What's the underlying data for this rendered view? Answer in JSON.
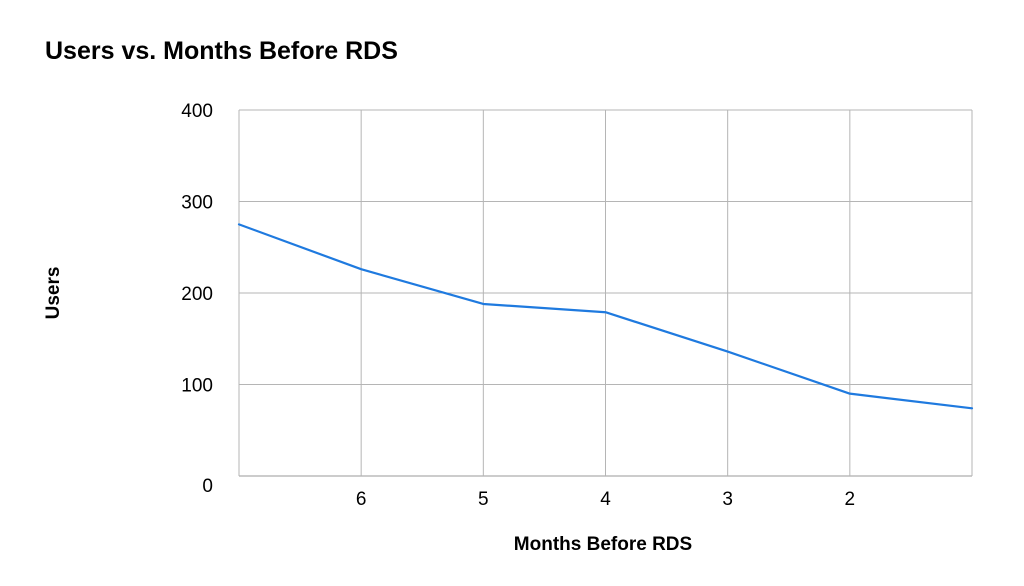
{
  "chart_data": {
    "type": "line",
    "title": "Users vs. Months Before RDS",
    "xlabel": "Months Before RDS",
    "ylabel": "Users",
    "x": [
      7,
      6,
      5,
      4,
      3,
      2,
      1
    ],
    "x_tick_labels": [
      "6",
      "5",
      "4",
      "3",
      "2"
    ],
    "x_tick_values": [
      6,
      5,
      4,
      3,
      2
    ],
    "xlim": [
      7,
      1
    ],
    "y_tick_labels": [
      "0",
      "100",
      "200",
      "300",
      "400"
    ],
    "y_tick_values": [
      0,
      100,
      200,
      300,
      400
    ],
    "ylim": [
      0,
      400
    ],
    "series": [
      {
        "values": [
          275,
          226,
          188,
          179,
          136,
          90,
          74
        ]
      }
    ],
    "line_color": "#1f7adf",
    "grid": true,
    "legend": "none"
  }
}
